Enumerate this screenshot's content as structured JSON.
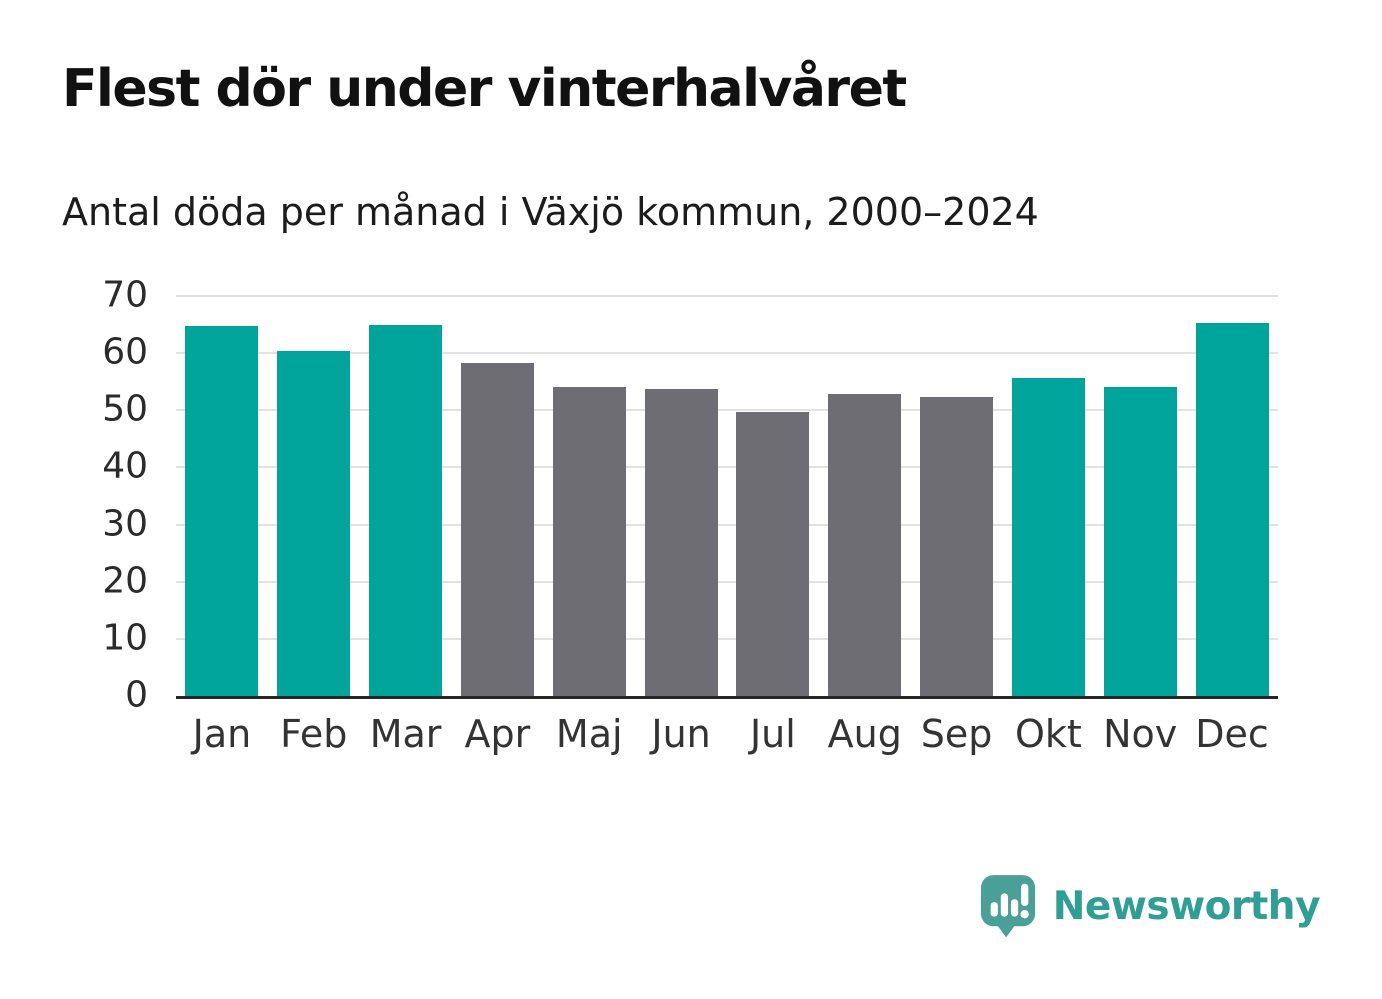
{
  "header": {
    "title": "Flest dör under vinterhalvåret",
    "subtitle": "Antal döda per månad i Växjö kommun, 2000–2024"
  },
  "chart_data": {
    "type": "bar",
    "title": "Flest dör under vinterhalvåret",
    "subtitle": "Antal döda per månad i Växjö kommun, 2000–2024",
    "categories": [
      "Jan",
      "Feb",
      "Mar",
      "Apr",
      "Maj",
      "Jun",
      "Jul",
      "Aug",
      "Sep",
      "Okt",
      "Nov",
      "Dec"
    ],
    "values": [
      64.7,
      60.4,
      65.0,
      58.2,
      54.1,
      53.7,
      49.7,
      52.9,
      52.3,
      55.6,
      54.1,
      65.3
    ],
    "highlighted": [
      true,
      true,
      true,
      false,
      false,
      false,
      false,
      false,
      false,
      true,
      true,
      true
    ],
    "highlight_color": "#00a49b",
    "base_color": "#6e6d74",
    "xlabel": "",
    "ylabel": "",
    "ylim": [
      0,
      70
    ],
    "yticks": [
      0,
      10,
      20,
      30,
      40,
      50,
      60,
      70
    ],
    "grid": "horizontal",
    "legend": "none",
    "gridline_color": "#e2e2e2",
    "axis_line_color": "#272727"
  },
  "footer": {
    "brand": "Newsworthy",
    "brand_color": "#2f9e94",
    "logo_icon": "bar-chart-speech-bubble-icon",
    "logo_icon_color": "#4aa096"
  }
}
